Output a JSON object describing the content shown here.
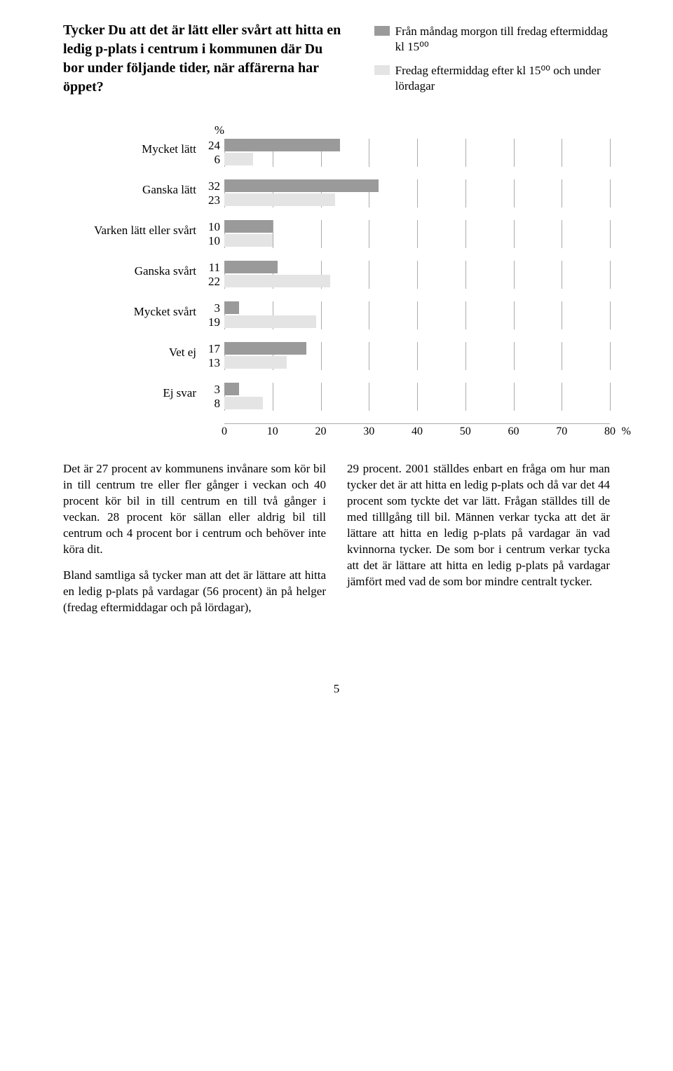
{
  "question": "Tycker Du att det är lätt eller svårt att hitta en ledig p-plats i centrum i kommunen där Du bor under följande tider, när affärerna har öppet?",
  "legend": [
    {
      "color": "#9a9a9a",
      "text": "Från måndag morgon till fredag eftermiddag kl 15⁰⁰"
    },
    {
      "color": "#e4e4e4",
      "text": "Fredag eftermiddag efter kl 15⁰⁰ och under lördagar"
    }
  ],
  "chart": {
    "pct_symbol": "%",
    "series_colors": [
      "#9a9a9a",
      "#e4e4e4"
    ],
    "xmax": 80,
    "xticks": [
      0,
      10,
      20,
      30,
      40,
      50,
      60,
      70,
      80
    ],
    "axis_suffix": "%",
    "categories": [
      {
        "label": "Mycket lätt",
        "values": [
          24,
          6
        ]
      },
      {
        "label": "Ganska lätt",
        "values": [
          32,
          23
        ]
      },
      {
        "label": "Varken lätt eller svårt",
        "values": [
          10,
          10
        ]
      },
      {
        "label": "Ganska svårt",
        "values": [
          11,
          22
        ]
      },
      {
        "label": "Mycket svårt",
        "values": [
          3,
          19
        ]
      },
      {
        "label": "Vet ej",
        "values": [
          17,
          13
        ]
      },
      {
        "label": "Ej svar",
        "values": [
          3,
          8
        ]
      }
    ]
  },
  "body": {
    "left": [
      "Det är 27 procent av kommunens invånare som kör bil in till centrum tre eller fler gånger i veckan och 40 procent kör bil in till centrum en till två gånger i veckan. 28 procent kör sällan eller aldrig bil till centrum och 4 procent bor i centrum och behöver inte köra dit.",
      "Bland samtliga så tycker man att det är lättare att hitta en ledig p-plats på vardagar (56 procent) än på helger (fredag eftermiddagar och på lördagar),"
    ],
    "right": [
      "29 procent. 2001 ställdes enbart en fråga om hur man tycker det är att hitta en ledig p-plats och då var det 44 procent som tyckte det var lätt. Frågan ställdes till de med tilllgång till bil. Männen verkar tycka att det är lättare att hitta en ledig p-plats på vardagar än vad kvinnorna tycker. De som bor i centrum verkar tycka att det är lättare att hitta en ledig p-plats på vardagar jämfört med vad de som bor mindre centralt tycker."
    ]
  },
  "page_number": "5"
}
